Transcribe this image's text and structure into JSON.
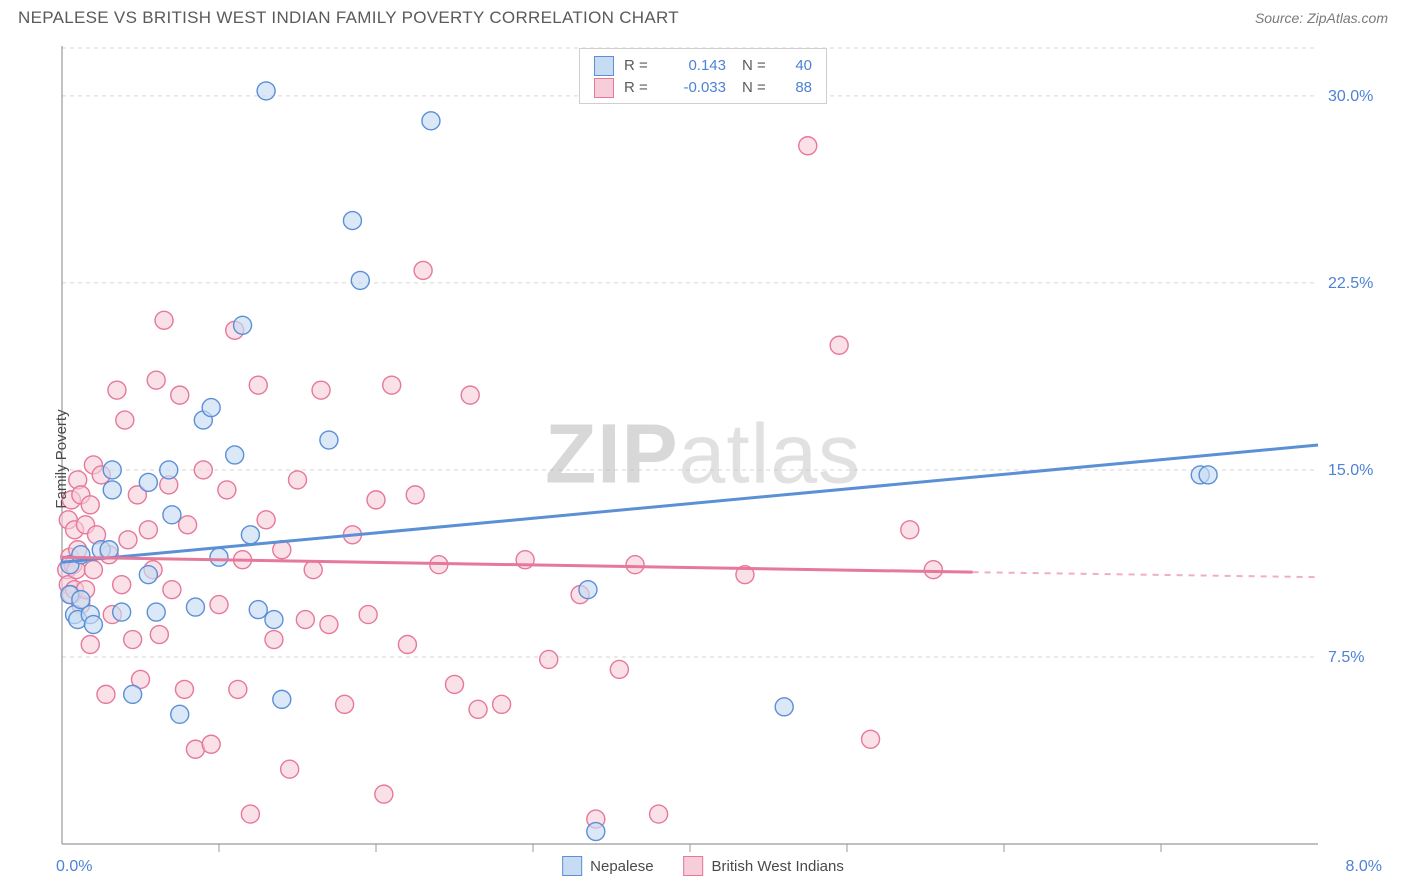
{
  "title": "NEPALESE VS BRITISH WEST INDIAN FAMILY POVERTY CORRELATION CHART",
  "source": "Source: ZipAtlas.com",
  "watermark_a": "ZIP",
  "watermark_b": "atlas",
  "ylabel": "Family Poverty",
  "series_a": {
    "name": "Nepalese",
    "stroke": "#5b8fd6",
    "fill": "#c7dbf2",
    "fill_opacity": 0.65,
    "R_label": "R =",
    "R": "0.143",
    "N_label": "N =",
    "N": "40",
    "points": [
      [
        0.05,
        10.0
      ],
      [
        0.05,
        11.2
      ],
      [
        0.08,
        9.2
      ],
      [
        0.1,
        9.0
      ],
      [
        0.12,
        9.8
      ],
      [
        0.12,
        11.6
      ],
      [
        0.18,
        9.2
      ],
      [
        0.2,
        8.8
      ],
      [
        0.25,
        11.8
      ],
      [
        0.3,
        11.8
      ],
      [
        0.32,
        14.2
      ],
      [
        0.32,
        15.0
      ],
      [
        0.38,
        9.3
      ],
      [
        0.45,
        6.0
      ],
      [
        0.55,
        14.5
      ],
      [
        0.6,
        9.3
      ],
      [
        0.68,
        15.0
      ],
      [
        0.7,
        13.2
      ],
      [
        0.75,
        5.2
      ],
      [
        0.85,
        9.5
      ],
      [
        0.9,
        17.0
      ],
      [
        0.95,
        17.5
      ],
      [
        1.0,
        11.5
      ],
      [
        1.1,
        15.6
      ],
      [
        1.15,
        20.8
      ],
      [
        1.2,
        12.4
      ],
      [
        1.25,
        9.4
      ],
      [
        1.3,
        30.2
      ],
      [
        1.35,
        9.0
      ],
      [
        1.4,
        5.8
      ],
      [
        1.7,
        16.2
      ],
      [
        1.85,
        25.0
      ],
      [
        1.9,
        22.6
      ],
      [
        2.35,
        29.0
      ],
      [
        3.35,
        10.2
      ],
      [
        3.4,
        0.5
      ],
      [
        4.6,
        5.5
      ],
      [
        7.25,
        14.8
      ],
      [
        7.3,
        14.8
      ],
      [
        0.55,
        10.8
      ]
    ],
    "trend": {
      "x1": 0.0,
      "y1": 11.3,
      "x2": 8.0,
      "y2": 16.0
    }
  },
  "series_b": {
    "name": "British West Indians",
    "stroke": "#e6789b",
    "fill": "#f6cdd8",
    "fill_opacity": 0.6,
    "R_label": "R =",
    "R": "-0.033",
    "N_label": "N =",
    "N": "88",
    "points": [
      [
        0.03,
        11.0
      ],
      [
        0.04,
        10.4
      ],
      [
        0.04,
        13.0
      ],
      [
        0.05,
        11.5
      ],
      [
        0.06,
        10.0
      ],
      [
        0.06,
        13.8
      ],
      [
        0.07,
        11.2
      ],
      [
        0.08,
        10.2
      ],
      [
        0.08,
        12.6
      ],
      [
        0.09,
        11.0
      ],
      [
        0.1,
        14.6
      ],
      [
        0.1,
        11.8
      ],
      [
        0.12,
        9.6
      ],
      [
        0.12,
        14.0
      ],
      [
        0.15,
        10.2
      ],
      [
        0.15,
        12.8
      ],
      [
        0.18,
        8.0
      ],
      [
        0.18,
        13.6
      ],
      [
        0.2,
        11.0
      ],
      [
        0.2,
        15.2
      ],
      [
        0.22,
        12.4
      ],
      [
        0.25,
        14.8
      ],
      [
        0.28,
        6.0
      ],
      [
        0.3,
        11.6
      ],
      [
        0.32,
        9.2
      ],
      [
        0.35,
        18.2
      ],
      [
        0.38,
        10.4
      ],
      [
        0.4,
        17.0
      ],
      [
        0.42,
        12.2
      ],
      [
        0.45,
        8.2
      ],
      [
        0.48,
        14.0
      ],
      [
        0.5,
        6.6
      ],
      [
        0.55,
        12.6
      ],
      [
        0.58,
        11.0
      ],
      [
        0.6,
        18.6
      ],
      [
        0.62,
        8.4
      ],
      [
        0.65,
        21.0
      ],
      [
        0.68,
        14.4
      ],
      [
        0.7,
        10.2
      ],
      [
        0.75,
        18.0
      ],
      [
        0.78,
        6.2
      ],
      [
        0.8,
        12.8
      ],
      [
        0.85,
        3.8
      ],
      [
        0.9,
        15.0
      ],
      [
        0.95,
        4.0
      ],
      [
        1.0,
        9.6
      ],
      [
        1.05,
        14.2
      ],
      [
        1.1,
        20.6
      ],
      [
        1.12,
        6.2
      ],
      [
        1.15,
        11.4
      ],
      [
        1.2,
        1.2
      ],
      [
        1.25,
        18.4
      ],
      [
        1.3,
        13.0
      ],
      [
        1.35,
        8.2
      ],
      [
        1.4,
        11.8
      ],
      [
        1.45,
        3.0
      ],
      [
        1.5,
        14.6
      ],
      [
        1.55,
        9.0
      ],
      [
        1.6,
        11.0
      ],
      [
        1.65,
        18.2
      ],
      [
        1.7,
        8.8
      ],
      [
        1.8,
        5.6
      ],
      [
        1.85,
        12.4
      ],
      [
        1.95,
        9.2
      ],
      [
        2.0,
        13.8
      ],
      [
        2.05,
        2.0
      ],
      [
        2.1,
        18.4
      ],
      [
        2.2,
        8.0
      ],
      [
        2.25,
        14.0
      ],
      [
        2.3,
        23.0
      ],
      [
        2.4,
        11.2
      ],
      [
        2.5,
        6.4
      ],
      [
        2.6,
        18.0
      ],
      [
        2.65,
        5.4
      ],
      [
        2.8,
        5.6
      ],
      [
        2.95,
        11.4
      ],
      [
        3.1,
        7.4
      ],
      [
        3.3,
        10.0
      ],
      [
        3.4,
        1.0
      ],
      [
        3.55,
        7.0
      ],
      [
        3.65,
        11.2
      ],
      [
        3.8,
        1.2
      ],
      [
        4.35,
        10.8
      ],
      [
        4.75,
        28.0
      ],
      [
        4.95,
        20.0
      ],
      [
        5.15,
        4.2
      ],
      [
        5.4,
        12.6
      ],
      [
        5.55,
        11.0
      ]
    ],
    "trend_solid": {
      "x1": 0.0,
      "y1": 11.5,
      "x2": 5.8,
      "y2": 10.9
    },
    "trend_dash": {
      "x1": 5.8,
      "y1": 10.9,
      "x2": 8.0,
      "y2": 10.7
    }
  },
  "axes": {
    "xlim": [
      0,
      8
    ],
    "ylim": [
      0,
      32
    ],
    "x_corner_left": "0.0%",
    "x_corner_right": "8.0%",
    "y_grid": [
      {
        "v": 7.5,
        "label": "7.5%"
      },
      {
        "v": 15.0,
        "label": "15.0%"
      },
      {
        "v": 22.5,
        "label": "22.5%"
      },
      {
        "v": 30.0,
        "label": "30.0%"
      }
    ],
    "x_ticks": [
      1,
      2,
      3,
      4,
      5,
      6,
      7
    ],
    "grid_color": "#d6d6d6",
    "axis_color": "#9a9a9a",
    "label_color": "#4d82d6",
    "label_fontsize": 16,
    "point_radius": 9
  }
}
